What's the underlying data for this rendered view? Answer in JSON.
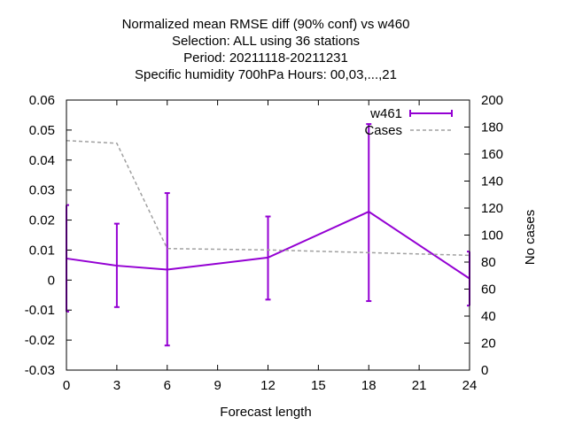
{
  "chart_data": {
    "type": "line",
    "title_lines": [
      "Normalized mean RMSE diff (90% conf) vs w460",
      "Selection: ALL using    36 stations",
      "Period: 20211118-20211231",
      "Specific humidity 700hPa   Hours:  00,03,...,21"
    ],
    "xlabel": "Forecast length",
    "ylabel": "",
    "y2label": "No cases",
    "xlim": [
      0,
      24
    ],
    "ylim": [
      -0.03,
      0.06
    ],
    "y2lim": [
      0,
      200
    ],
    "xticks": [
      "0",
      "3",
      "6",
      "9",
      "12",
      "15",
      "18",
      "21",
      "24"
    ],
    "yticks": [
      "-0.03",
      "-0.02",
      "-0.01",
      "0",
      "0.01",
      "0.02",
      "0.03",
      "0.04",
      "0.05",
      "0.06"
    ],
    "y2ticks": [
      "0",
      "20",
      "40",
      "60",
      "80",
      "100",
      "120",
      "140",
      "160",
      "180",
      "200"
    ],
    "legend_position": "top-right",
    "series": [
      {
        "name": "w461",
        "axis": "y",
        "color": "#9400d3",
        "x": [
          0,
          3,
          6,
          12,
          18,
          24
        ],
        "y": [
          0.0072,
          0.0048,
          0.0035,
          0.0075,
          0.0228,
          0.0005
        ],
        "err_low": [
          -0.0105,
          -0.009,
          -0.0218,
          -0.0065,
          -0.007,
          -0.0085
        ],
        "err_high": [
          0.025,
          0.0188,
          0.029,
          0.0212,
          0.052,
          0.0095
        ]
      },
      {
        "name": "Cases",
        "axis": "y2",
        "color": "#a0a0a0",
        "dashed": true,
        "x": [
          0,
          3,
          6,
          12,
          18,
          24
        ],
        "y": [
          170,
          168,
          90,
          89,
          87,
          85
        ]
      }
    ]
  }
}
